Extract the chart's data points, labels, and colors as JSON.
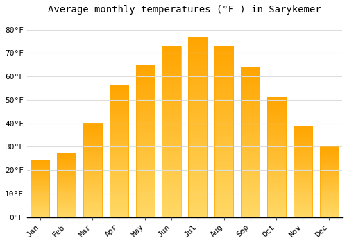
{
  "title": "Average monthly temperatures (°F ) in Sarykemer",
  "months": [
    "Jan",
    "Feb",
    "Mar",
    "Apr",
    "May",
    "Jun",
    "Jul",
    "Aug",
    "Sep",
    "Oct",
    "Nov",
    "Dec"
  ],
  "values": [
    24,
    27,
    40,
    56,
    65,
    73,
    77,
    73,
    64,
    51,
    39,
    30
  ],
  "bar_color_top": "#FFA500",
  "bar_color_bottom": "#FFD966",
  "bar_edge_color": "#FFA500",
  "background_color": "#FFFFFF",
  "grid_color": "#DDDDDD",
  "ylim": [
    0,
    84
  ],
  "yticks": [
    0,
    10,
    20,
    30,
    40,
    50,
    60,
    70,
    80
  ],
  "ytick_labels": [
    "0°F",
    "10°F",
    "20°F",
    "30°F",
    "40°F",
    "50°F",
    "60°F",
    "70°F",
    "80°F"
  ],
  "title_fontsize": 10,
  "tick_fontsize": 8,
  "title_font_family": "monospace"
}
